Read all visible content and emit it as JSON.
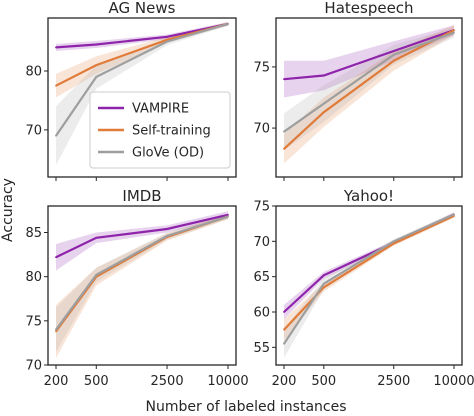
{
  "figure": {
    "ylabel": "Accuracy",
    "xlabel": "Number of labeled instances"
  },
  "legend": {
    "placement": "left-center of AG News panel",
    "entries": [
      "VAMPIRE",
      "Self-training",
      "GloVe (OD)"
    ]
  },
  "colors": {
    "VAMPIRE": "#8e24aa",
    "Self-training": "#e07b39",
    "GloVe (OD)": "#9e9e9e"
  },
  "chart_data": [
    {
      "type": "line",
      "title": "AG News",
      "x": [
        200,
        500,
        2500,
        10000
      ],
      "xscale": "log",
      "xticks": [
        "200",
        "500",
        "2500",
        "10000"
      ],
      "xtick_labels_shown": false,
      "ylim": [
        62,
        89
      ],
      "yticks": [
        70,
        80
      ],
      "series": [
        {
          "name": "VAMPIRE",
          "values": [
            84.0,
            84.5,
            85.8,
            88.0
          ],
          "band": [
            0.6,
            0.6,
            0.4,
            0.3
          ]
        },
        {
          "name": "Self-training",
          "values": [
            77.5,
            81.0,
            85.3,
            88.0
          ],
          "band": [
            2.0,
            1.5,
            0.5,
            0.3
          ]
        },
        {
          "name": "GloVe (OD)",
          "values": [
            69.0,
            79.0,
            85.0,
            88.0
          ],
          "band": [
            5.0,
            2.0,
            0.6,
            0.3
          ]
        }
      ]
    },
    {
      "type": "line",
      "title": "Hatespeech",
      "x": [
        200,
        500,
        2500,
        10000
      ],
      "xscale": "log",
      "xticks": [
        "200",
        "500",
        "2500",
        "10000"
      ],
      "xtick_labels_shown": false,
      "ylim": [
        66,
        79
      ],
      "yticks": [
        70,
        75
      ],
      "series": [
        {
          "name": "VAMPIRE",
          "values": [
            74.0,
            74.3,
            76.3,
            78.0
          ],
          "band": [
            1.5,
            1.2,
            0.8,
            0.4
          ]
        },
        {
          "name": "Self-training",
          "values": [
            68.3,
            71.3,
            75.5,
            78.0
          ],
          "band": [
            1.2,
            1.2,
            0.8,
            0.4
          ]
        },
        {
          "name": "GloVe (OD)",
          "values": [
            69.7,
            72.0,
            76.0,
            77.8
          ],
          "band": [
            1.5,
            1.5,
            0.8,
            0.4
          ]
        }
      ]
    },
    {
      "type": "line",
      "title": "IMDB",
      "x": [
        200,
        500,
        2500,
        10000
      ],
      "xscale": "log",
      "xticks": [
        "200",
        "500",
        "2500",
        "10000"
      ],
      "xtick_labels_shown": true,
      "ylim": [
        70,
        88
      ],
      "yticks": [
        70,
        75,
        80,
        85
      ],
      "series": [
        {
          "name": "VAMPIRE",
          "values": [
            82.2,
            84.4,
            85.4,
            87.0
          ],
          "band": [
            1.5,
            0.6,
            0.4,
            0.4
          ]
        },
        {
          "name": "Self-training",
          "values": [
            73.8,
            80.0,
            84.5,
            86.8
          ],
          "band": [
            3.0,
            1.0,
            0.4,
            0.3
          ]
        },
        {
          "name": "GloVe (OD)",
          "values": [
            74.0,
            80.2,
            84.6,
            86.8
          ],
          "band": [
            2.5,
            0.8,
            0.4,
            0.3
          ]
        }
      ]
    },
    {
      "type": "line",
      "title": "Yahoo!",
      "x": [
        200,
        500,
        2500,
        10000
      ],
      "xscale": "log",
      "xticks": [
        "200",
        "500",
        "2500",
        "10000"
      ],
      "xtick_labels_shown": true,
      "ylim": [
        52.5,
        75
      ],
      "yticks": [
        55,
        60,
        65,
        70,
        75
      ],
      "series": [
        {
          "name": "VAMPIRE",
          "values": [
            60.0,
            65.2,
            69.8,
            73.8
          ],
          "band": [
            1.0,
            0.5,
            0.3,
            0.3
          ]
        },
        {
          "name": "Self-training",
          "values": [
            57.5,
            63.5,
            69.7,
            73.6
          ],
          "band": [
            1.5,
            0.6,
            0.3,
            0.3
          ]
        },
        {
          "name": "GloVe (OD)",
          "values": [
            55.5,
            64.0,
            70.0,
            73.8
          ],
          "band": [
            2.0,
            0.8,
            0.3,
            0.3
          ]
        }
      ]
    }
  ]
}
